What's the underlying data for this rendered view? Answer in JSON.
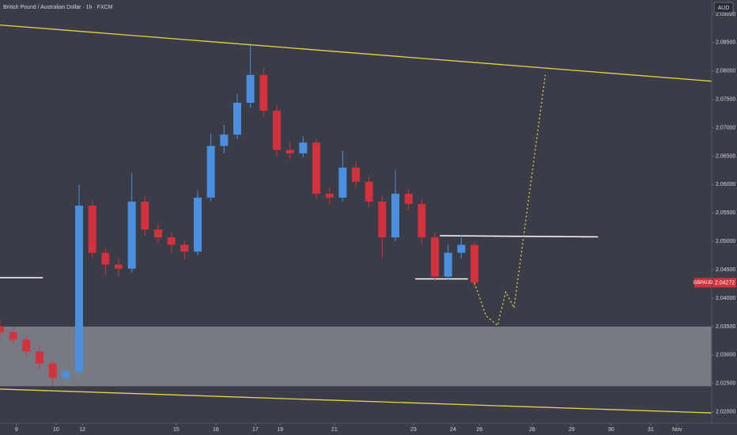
{
  "chart_data": {
    "type": "candlestick",
    "title": "British Pound / Australian Dollar · 1h · FXCM",
    "currency": "AUD",
    "symbol": "GBPAUD",
    "up_color": "#4a8fe0",
    "down_color": "#d1323e",
    "candles": {
      "x": [
        0,
        8,
        16,
        24,
        32,
        40,
        48,
        56,
        64,
        72,
        80,
        88,
        96,
        104,
        112,
        120,
        128,
        136,
        144,
        152,
        160,
        168,
        176,
        184,
        192,
        200,
        208,
        216,
        224,
        232,
        240,
        248,
        256,
        264,
        272,
        280,
        288
      ],
      "open": [
        2.035,
        2.034,
        2.0327,
        2.0306,
        2.0285,
        2.026,
        2.0271,
        2.0563,
        2.048,
        2.0459,
        2.0452,
        2.057,
        2.0521,
        2.0507,
        2.0494,
        2.0482,
        2.0577,
        2.0668,
        2.0688,
        2.0744,
        2.0793,
        2.073,
        2.0661,
        2.0655,
        2.0674,
        2.0584,
        2.0577,
        2.063,
        2.0605,
        2.057,
        2.0507,
        2.0584,
        2.0566,
        2.0507,
        2.0438,
        2.048,
        2.0494
      ],
      "high": [
        2.036,
        2.0348,
        2.0335,
        2.0316,
        2.0292,
        2.028,
        2.06,
        2.0572,
        2.049,
        2.047,
        2.062,
        2.058,
        2.0532,
        2.0515,
        2.0502,
        2.059,
        2.069,
        2.0705,
        2.076,
        2.0845,
        2.0805,
        2.074,
        2.0675,
        2.0685,
        2.068,
        2.0595,
        2.066,
        2.064,
        2.0615,
        2.058,
        2.0625,
        2.0592,
        2.0575,
        2.0515,
        2.0495,
        2.0512,
        2.05
      ],
      "low": [
        2.033,
        2.0318,
        2.0298,
        2.0275,
        2.0245,
        2.0252,
        2.0262,
        2.047,
        2.044,
        2.0438,
        2.0445,
        2.051,
        2.0498,
        2.048,
        2.0468,
        2.0475,
        2.057,
        2.0655,
        2.068,
        2.0735,
        2.072,
        2.065,
        2.0645,
        2.0648,
        2.0575,
        2.0565,
        2.057,
        2.0595,
        2.056,
        2.047,
        2.05,
        2.0555,
        2.0495,
        2.043,
        2.0432,
        2.047,
        2.042
      ],
      "close": [
        2.034,
        2.0327,
        2.0306,
        2.0285,
        2.026,
        2.0271,
        2.0563,
        2.048,
        2.0459,
        2.0452,
        2.057,
        2.0521,
        2.0507,
        2.0494,
        2.0482,
        2.0577,
        2.0668,
        2.0688,
        2.0744,
        2.0793,
        2.073,
        2.0661,
        2.0655,
        2.0674,
        2.0584,
        2.0577,
        2.063,
        2.0605,
        2.057,
        2.0507,
        2.0584,
        2.0566,
        2.0507,
        2.0438,
        2.048,
        2.0494,
        2.04272
      ]
    },
    "zone": {
      "y": [
        2.035,
        2.0245
      ],
      "color": "#a9abb4"
    },
    "trendlines": [
      {
        "x": [
          0,
          432
        ],
        "y": [
          2.0881,
          2.0782
        ],
        "color": "#e6d54a"
      },
      {
        "x": [
          0,
          432
        ],
        "y": [
          2.024,
          2.0198
        ],
        "color": "#e6d54a"
      }
    ],
    "levels": [
      {
        "x": [
          0,
          26
        ],
        "y": [
          2.0436,
          2.0436
        ],
        "color": "#ffffff"
      },
      {
        "x": [
          252,
          284
        ],
        "y": [
          2.0434,
          2.0434
        ],
        "color": "#ffffff"
      },
      {
        "x": [
          267,
          363
        ],
        "y": [
          2.051,
          2.0508
        ],
        "color": "#ffffff"
      }
    ],
    "projection": {
      "x": [
        288,
        295,
        302,
        307,
        312,
        331
      ],
      "y": [
        2.0427,
        2.0369,
        2.0352,
        2.0411,
        2.0383,
        2.0793
      ],
      "color": "#e6d54a"
    },
    "xlim": [
      0,
      432
    ],
    "xticks": [
      {
        "value": 10,
        "label": "9"
      },
      {
        "value": 34,
        "label": "10"
      },
      {
        "value": 50,
        "label": "12"
      },
      {
        "value": 107,
        "label": "15"
      },
      {
        "value": 131,
        "label": "16"
      },
      {
        "value": 155,
        "label": "17"
      },
      {
        "value": 170,
        "label": "19"
      },
      {
        "value": 203,
        "label": "21"
      },
      {
        "value": 251,
        "label": "23"
      },
      {
        "value": 275,
        "label": "24"
      },
      {
        "value": 291,
        "label": "26"
      },
      {
        "value": 323,
        "label": "28"
      },
      {
        "value": 347,
        "label": "29"
      },
      {
        "value": 371,
        "label": "30"
      },
      {
        "value": 395,
        "label": "31"
      },
      {
        "value": 411,
        "label": "Nov"
      }
    ],
    "ylim": [
      2.018,
      2.0925
    ],
    "yticks": [
      {
        "value": 2.02,
        "label": "2.02000"
      },
      {
        "value": 2.025,
        "label": "2.02500"
      },
      {
        "value": 2.03,
        "label": "2.03000"
      },
      {
        "value": 2.035,
        "label": "2.03500"
      },
      {
        "value": 2.04,
        "label": "2.04000"
      },
      {
        "value": 2.045,
        "label": "2.04500"
      },
      {
        "value": 2.05,
        "label": "2.05000"
      },
      {
        "value": 2.055,
        "label": "2.05500"
      },
      {
        "value": 2.06,
        "label": "2.06000"
      },
      {
        "value": 2.065,
        "label": "2.06500"
      },
      {
        "value": 2.07,
        "label": "2.07000"
      },
      {
        "value": 2.075,
        "label": "2.07500"
      },
      {
        "value": 2.08,
        "label": "2.08000"
      },
      {
        "value": 2.085,
        "label": "2.08500"
      },
      {
        "value": 2.09,
        "label": "2.09000"
      }
    ]
  }
}
